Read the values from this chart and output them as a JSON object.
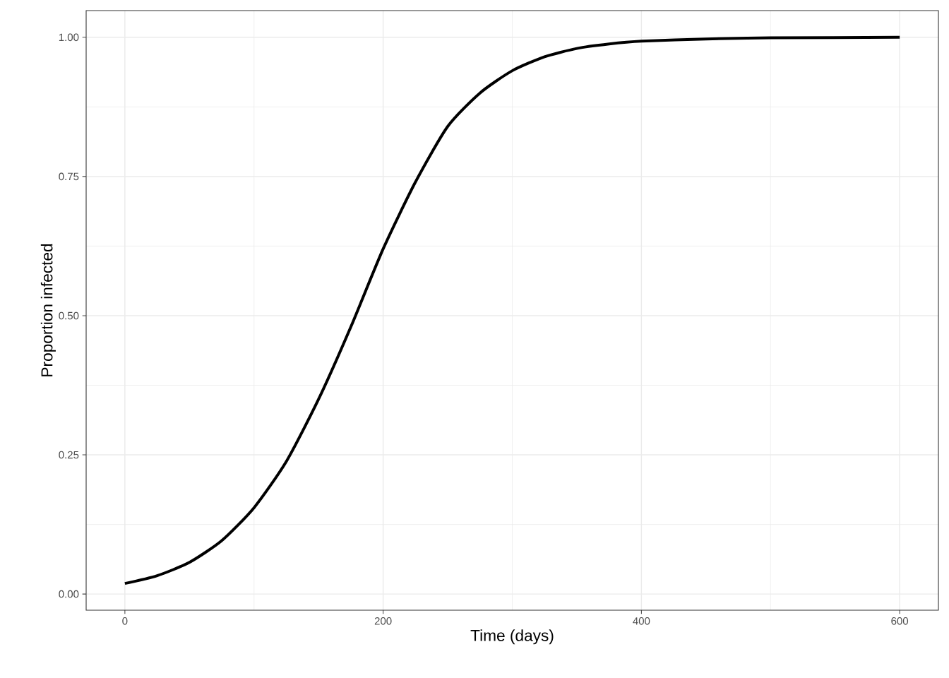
{
  "chart_data": {
    "type": "line",
    "xlabel": "Time (days)",
    "ylabel": "Proportion infected",
    "x": [
      0,
      25,
      50,
      75,
      100,
      125,
      150,
      175,
      200,
      225,
      250,
      275,
      300,
      325,
      350,
      375,
      400,
      450,
      500,
      600
    ],
    "series": [
      {
        "color": "#000000",
        "values": [
          0.019,
          0.033,
          0.057,
          0.096,
          0.155,
          0.238,
          0.35,
          0.48,
          0.62,
          0.74,
          0.84,
          0.9,
          0.94,
          0.965,
          0.98,
          0.988,
          0.993,
          0.997,
          0.999,
          1.0
        ]
      }
    ],
    "xlim": [
      -30,
      630
    ],
    "ylim": [
      -0.029,
      1.048
    ],
    "xticks": [
      0,
      200,
      400,
      600
    ],
    "yticks": [
      {
        "value": 0,
        "label": "0.00"
      },
      {
        "value": 0.25,
        "label": "0.25"
      },
      {
        "value": 0.5,
        "label": "0.50"
      },
      {
        "value": 0.75,
        "label": "0.75"
      },
      {
        "value": 1,
        "label": "1.00"
      }
    ],
    "grid": true
  }
}
